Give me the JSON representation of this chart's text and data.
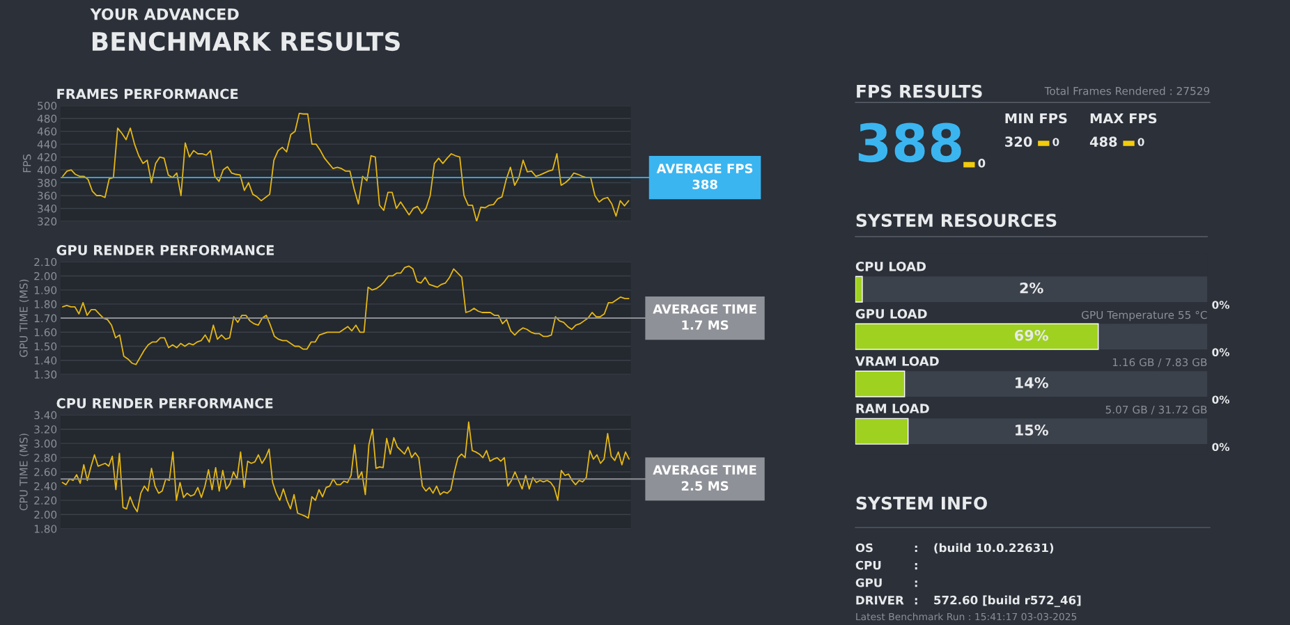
{
  "chart_data": [
    {
      "type": "other",
      "title": "BENCHMARK RESULTS",
      "subtitle": "YOUR ADVANCED"
    },
    {
      "type": "line",
      "title": "FRAMES PERFORMANCE",
      "ylabel": "FPS",
      "grid": "y",
      "categories": [
        null,
        null,
        null,
        null,
        null,
        null,
        null,
        null,
        null,
        null,
        null,
        null,
        null,
        null,
        null,
        null,
        null,
        null,
        null,
        null,
        null,
        null,
        null,
        null,
        null,
        null,
        null,
        null,
        null,
        null,
        null,
        null,
        null,
        null,
        null,
        null,
        null,
        null,
        null,
        null,
        null,
        null,
        null,
        null,
        null,
        null,
        null,
        null,
        null,
        null,
        null,
        null,
        null,
        null,
        null,
        null,
        null,
        null,
        null,
        null,
        null,
        null,
        null,
        null,
        null,
        null,
        null,
        null,
        null,
        null,
        null,
        null,
        null,
        null,
        null,
        null,
        null,
        null,
        null,
        null,
        null,
        null,
        null,
        null,
        null,
        null,
        null,
        null,
        null,
        null,
        null,
        null,
        null,
        null,
        null,
        null,
        null,
        null,
        null,
        null,
        null,
        null,
        null,
        null,
        null,
        null,
        null,
        null,
        null,
        null,
        null,
        null,
        null,
        null,
        null,
        null,
        null,
        null,
        null,
        null,
        null,
        null,
        null,
        null,
        null,
        null,
        null,
        null,
        null,
        null,
        null,
        null,
        null,
        null,
        null
      ],
      "series": [
        {
          "color": "#e5b815",
          "values": [
            390,
            398,
            400,
            393,
            390,
            390,
            385,
            367,
            360,
            360,
            357,
            386,
            388,
            465,
            457,
            447,
            465,
            440,
            422,
            410,
            415,
            380,
            410,
            420,
            418,
            392,
            388,
            395,
            360,
            442,
            420,
            430,
            425,
            425,
            423,
            430,
            390,
            382,
            400,
            405,
            395,
            393,
            392,
            368,
            380,
            362,
            358,
            352,
            357,
            362,
            415,
            430,
            435,
            428,
            455,
            460,
            488,
            487,
            487,
            440,
            440,
            430,
            418,
            410,
            402,
            404,
            402,
            398,
            398,
            370,
            347,
            390,
            383,
            422,
            420,
            345,
            337,
            365,
            365,
            340,
            350,
            340,
            330,
            340,
            343,
            332,
            340,
            360,
            410,
            418,
            410,
            418,
            425,
            422,
            420,
            360,
            345,
            345,
            320,
            342,
            341,
            345,
            346,
            355,
            358,
            385,
            404,
            376,
            388,
            415,
            397,
            398,
            390,
            392,
            395,
            398,
            400,
            425,
            376,
            380,
            386,
            395,
            393,
            390,
            388,
            388,
            360,
            350,
            355,
            357,
            347,
            328,
            352,
            344,
            352
          ]
        }
      ],
      "ylim": [
        320,
        500
      ],
      "yticks": [
        320,
        340,
        360,
        380,
        400,
        420,
        440,
        460,
        480,
        500
      ],
      "ref_lines": [
        {
          "axis": "y",
          "value": 388,
          "label": "AVERAGE FPS\n388",
          "color": "#3bb5f0"
        }
      ]
    },
    {
      "type": "line",
      "title": "GPU RENDER PERFORMANCE",
      "ylabel": "GPU TIME (MS)",
      "grid": "y",
      "categories": [
        null,
        null,
        null,
        null,
        null,
        null,
        null,
        null,
        null,
        null,
        null,
        null,
        null,
        null,
        null,
        null,
        null,
        null,
        null,
        null,
        null,
        null,
        null,
        null,
        null,
        null,
        null,
        null,
        null,
        null,
        null,
        null,
        null,
        null,
        null,
        null,
        null,
        null,
        null,
        null,
        null,
        null,
        null,
        null,
        null,
        null,
        null,
        null,
        null,
        null,
        null,
        null,
        null,
        null,
        null,
        null,
        null,
        null,
        null,
        null,
        null,
        null,
        null,
        null,
        null,
        null,
        null,
        null,
        null,
        null,
        null,
        null,
        null,
        null,
        null,
        null,
        null,
        null,
        null,
        null,
        null,
        null,
        null,
        null,
        null,
        null,
        null,
        null,
        null,
        null,
        null,
        null,
        null,
        null,
        null,
        null,
        null,
        null,
        null,
        null,
        null,
        null,
        null,
        null,
        null,
        null,
        null,
        null,
        null,
        null,
        null,
        null,
        null,
        null,
        null,
        null,
        null,
        null,
        null,
        null,
        null,
        null,
        null,
        null,
        null,
        null,
        null,
        null,
        null,
        null,
        null,
        null,
        null,
        null,
        null,
        null,
        null,
        null,
        null,
        null
      ],
      "series": [
        {
          "color": "#e5b815",
          "values": [
            1.78,
            1.79,
            1.78,
            1.78,
            1.73,
            1.81,
            1.72,
            1.76,
            1.76,
            1.73,
            1.7,
            1.69,
            1.65,
            1.56,
            1.58,
            1.43,
            1.41,
            1.38,
            1.37,
            1.42,
            1.47,
            1.51,
            1.53,
            1.53,
            1.56,
            1.56,
            1.49,
            1.51,
            1.49,
            1.52,
            1.5,
            1.52,
            1.51,
            1.53,
            1.54,
            1.58,
            1.53,
            1.65,
            1.55,
            1.58,
            1.55,
            1.56,
            1.71,
            1.67,
            1.72,
            1.72,
            1.68,
            1.66,
            1.65,
            1.7,
            1.72,
            1.65,
            1.57,
            1.55,
            1.54,
            1.54,
            1.52,
            1.5,
            1.5,
            1.48,
            1.48,
            1.53,
            1.53,
            1.58,
            1.59,
            1.6,
            1.6,
            1.6,
            1.6,
            1.62,
            1.64,
            1.61,
            1.65,
            1.6,
            1.6,
            1.92,
            1.9,
            1.91,
            1.93,
            1.96,
            2.0,
            2.0,
            2.02,
            2.02,
            2.06,
            2.07,
            2.05,
            1.96,
            1.95,
            1.99,
            1.94,
            1.93,
            1.92,
            1.94,
            1.95,
            1.99,
            2.05,
            2.02,
            1.99,
            1.74,
            1.75,
            1.77,
            1.75,
            1.74,
            1.74,
            1.74,
            1.72,
            1.72,
            1.66,
            1.69,
            1.61,
            1.58,
            1.61,
            1.63,
            1.62,
            1.6,
            1.59,
            1.59,
            1.57,
            1.57,
            1.58,
            1.71,
            1.68,
            1.67,
            1.64,
            1.62,
            1.65,
            1.66,
            1.68,
            1.7,
            1.74,
            1.71,
            1.71,
            1.73,
            1.81,
            1.81,
            1.83,
            1.85,
            1.84,
            1.84
          ]
        }
      ],
      "ylim": [
        1.3,
        2.1
      ],
      "yticks": [
        {
          "value": 1.3,
          "label": "1.30"
        },
        {
          "value": 1.4,
          "label": "1.40"
        },
        {
          "value": 1.5,
          "label": "1.50"
        },
        {
          "value": 1.6,
          "label": "1.60"
        },
        {
          "value": 1.7,
          "label": "1.70"
        },
        {
          "value": 1.8,
          "label": "1.80"
        },
        {
          "value": 1.9,
          "label": "1.90"
        },
        {
          "value": 2.0,
          "label": "2.00"
        },
        {
          "value": 2.1,
          "label": "2.10"
        }
      ],
      "ref_lines": [
        {
          "axis": "y",
          "value": 1.7,
          "label": "AVERAGE TIME\n1.7 MS",
          "color": "#8e9197"
        }
      ]
    },
    {
      "type": "line",
      "title": "CPU RENDER PERFORMANCE",
      "ylabel": "CPU TIME (MS)",
      "grid": "y",
      "categories": [
        null,
        null,
        null,
        null,
        null,
        null,
        null,
        null,
        null,
        null,
        null,
        null,
        null,
        null,
        null,
        null,
        null,
        null,
        null,
        null,
        null,
        null,
        null,
        null,
        null,
        null,
        null,
        null,
        null,
        null,
        null,
        null,
        null,
        null,
        null,
        null,
        null,
        null,
        null,
        null,
        null,
        null,
        null,
        null,
        null,
        null,
        null,
        null,
        null,
        null,
        null,
        null,
        null,
        null,
        null,
        null,
        null,
        null,
        null,
        null,
        null,
        null,
        null,
        null,
        null,
        null,
        null,
        null,
        null,
        null,
        null,
        null,
        null,
        null,
        null,
        null,
        null,
        null,
        null,
        null,
        null,
        null,
        null,
        null,
        null,
        null,
        null,
        null,
        null,
        null,
        null,
        null,
        null,
        null,
        null,
        null,
        null,
        null,
        null,
        null,
        null,
        null,
        null,
        null,
        null,
        null,
        null,
        null,
        null,
        null,
        null,
        null,
        null,
        null,
        null,
        null,
        null,
        null,
        null,
        null,
        null,
        null,
        null,
        null,
        null,
        null,
        null,
        null,
        null,
        null,
        null,
        null,
        null,
        null,
        null,
        null,
        null,
        null,
        null,
        null,
        null,
        null,
        null,
        null,
        null,
        null,
        null,
        null,
        null,
        null,
        null,
        null,
        null,
        null,
        null,
        null,
        null,
        null,
        null,
        null
      ],
      "series": [
        {
          "color": "#e5b815",
          "values": [
            2.45,
            2.42,
            2.5,
            2.48,
            2.56,
            2.44,
            2.7,
            2.48,
            2.67,
            2.84,
            2.68,
            2.7,
            2.72,
            2.68,
            2.82,
            2.35,
            2.86,
            2.1,
            2.08,
            2.25,
            2.12,
            2.04,
            2.3,
            2.4,
            2.33,
            2.65,
            2.4,
            2.3,
            2.33,
            2.5,
            2.48,
            2.88,
            2.2,
            2.45,
            2.24,
            2.3,
            2.26,
            2.28,
            2.38,
            2.24,
            2.4,
            2.63,
            2.35,
            2.66,
            2.33,
            2.62,
            2.36,
            2.43,
            2.6,
            2.5,
            2.88,
            2.38,
            2.75,
            2.72,
            2.74,
            2.84,
            2.72,
            2.8,
            2.92,
            2.45,
            2.3,
            2.2,
            2.36,
            2.2,
            2.08,
            2.28,
            2.02,
            2.0,
            1.98,
            1.95,
            2.25,
            2.2,
            2.35,
            2.25,
            2.38,
            2.4,
            2.5,
            2.42,
            2.42,
            2.47,
            2.45,
            2.55,
            2.98,
            2.5,
            2.6,
            2.28,
            2.98,
            3.2,
            2.65,
            2.67,
            2.66,
            3.07,
            2.85,
            3.08,
            2.95,
            2.9,
            2.85,
            2.95,
            2.8,
            2.87,
            2.8,
            2.4,
            2.33,
            2.38,
            2.3,
            2.4,
            2.28,
            2.32,
            2.3,
            2.35,
            2.6,
            2.8,
            2.85,
            2.8,
            3.3,
            2.9,
            2.88,
            2.85,
            2.8,
            2.9,
            2.75,
            2.78,
            2.8,
            2.75,
            2.8,
            2.4,
            2.48,
            2.6,
            2.48,
            2.36,
            2.55,
            2.36,
            2.52,
            2.45,
            2.48,
            2.46,
            2.48,
            2.45,
            2.38,
            2.2,
            2.62,
            2.55,
            2.57,
            2.48,
            2.42,
            2.48,
            2.46,
            2.52,
            2.9,
            2.78,
            2.84,
            2.72,
            2.78,
            3.14,
            2.82,
            2.76,
            2.88,
            2.7,
            2.88,
            2.78
          ]
        }
      ],
      "ylim": [
        1.8,
        3.4
      ],
      "yticks": [
        {
          "value": 1.8,
          "label": "1.80"
        },
        {
          "value": 2.0,
          "label": "2.00"
        },
        {
          "value": 2.2,
          "label": "2.20"
        },
        {
          "value": 2.4,
          "label": "2.40"
        },
        {
          "value": 2.6,
          "label": "2.60"
        },
        {
          "value": 2.8,
          "label": "2.80"
        },
        {
          "value": 3.0,
          "label": "3.00"
        },
        {
          "value": 3.2,
          "label": "3.20"
        },
        {
          "value": 3.4,
          "label": "3.40"
        }
      ],
      "ref_lines": [
        {
          "axis": "y",
          "value": 2.5,
          "label": "AVERAGE TIME\n2.5 MS",
          "color": "#8e9197"
        }
      ]
    },
    {
      "type": "other",
      "title": "FPS RESULTS",
      "annotations": [
        "Total Frames Rendered : 27529",
        "388",
        "0",
        "MIN FPS",
        "320",
        "0",
        "MAX FPS",
        "488",
        "0"
      ]
    },
    {
      "type": "bar",
      "orientation": "horizontal",
      "title": "SYSTEM RESOURCES",
      "tick_labels": false,
      "categories": [
        "CPU LOAD",
        "GPU LOAD",
        "VRAM LOAD",
        "RAM LOAD"
      ],
      "values": [
        2,
        69,
        14,
        15
      ],
      "colors": [
        "#9fd120",
        "#9fd120",
        "#9fd120",
        "#9fd120"
      ],
      "value_labels": [
        "2%",
        "69%",
        "14%",
        "15%"
      ],
      "xlim": [
        0,
        100
      ],
      "annotations": [
        "GPU Temperature 55 °C",
        "1.16 GB / 7.83 GB",
        "5.07 GB / 31.72 GB",
        "0%",
        "0%",
        "0%",
        "0%"
      ]
    },
    {
      "type": "other",
      "title": "SYSTEM INFO",
      "categories": [
        "OS",
        "CPU",
        "GPU",
        "DRIVER"
      ],
      "value_labels": [
        "(build 10.0.22631)",
        null,
        null,
        "572.60 [build r572_46]"
      ],
      "annotations": [
        ":",
        ":",
        ":",
        ":",
        "Latest Benchmark Run : 15:41:17 03-03-2025"
      ]
    }
  ]
}
